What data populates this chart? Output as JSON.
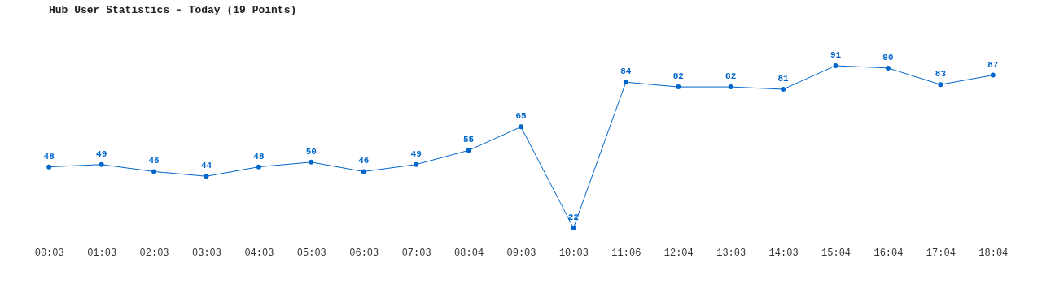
{
  "chart_data": {
    "type": "line",
    "title": "Hub User Statistics - Today (19 Points)",
    "categories": [
      "00:03",
      "01:03",
      "02:03",
      "03:03",
      "04:03",
      "05:03",
      "06:03",
      "07:03",
      "08:04",
      "09:03",
      "10:03",
      "11:06",
      "12:04",
      "13:03",
      "14:03",
      "15:04",
      "16:04",
      "17:04",
      "18:04"
    ],
    "values": [
      48,
      49,
      46,
      44,
      48,
      50,
      46,
      49,
      55,
      65,
      22,
      84,
      82,
      82,
      81,
      91,
      90,
      83,
      87
    ],
    "color": "#0066cc",
    "marker": "circle",
    "data_labels": true,
    "tick_labels": "x"
  }
}
